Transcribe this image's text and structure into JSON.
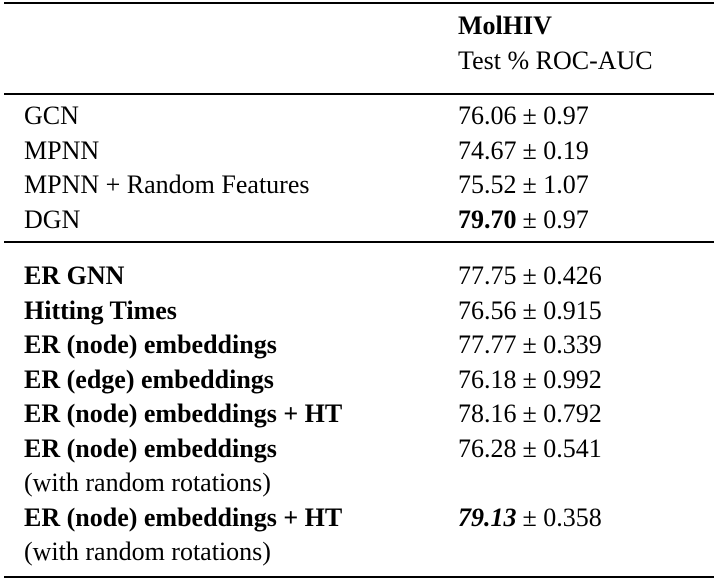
{
  "header": {
    "dataset": "MolHIV",
    "metric": "Test % ROC-AUC"
  },
  "table": {
    "groups": [
      {
        "bold": false,
        "rows": [
          {
            "method": "GCN",
            "mean": "76.06",
            "error": "± 0.97"
          },
          {
            "method": "MPNN",
            "mean": "74.67",
            "error": "± 0.19"
          },
          {
            "method": "MPNN + Random Features",
            "mean": "75.52",
            "error": "± 1.07"
          },
          {
            "method": "DGN",
            "mean": "79.70",
            "error": "± 0.97",
            "mean_style": "bold"
          }
        ]
      },
      {
        "bold": true,
        "rows": [
          {
            "method": "ER GNN",
            "mean": "77.75",
            "error": "± 0.426"
          },
          {
            "method": "Hitting Times",
            "mean": "76.56",
            "error": "± 0.915"
          },
          {
            "method": "ER (node) embeddings",
            "mean": "77.77",
            "error": "± 0.339"
          },
          {
            "method": "ER (edge) embeddings",
            "mean": "76.18",
            "error": "± 0.992"
          },
          {
            "method": "ER (node) embeddings + HT",
            "mean": "78.16",
            "error": "± 0.792"
          },
          {
            "method": "ER (node) embeddings",
            "note": "(with random rotations)",
            "mean": "76.28",
            "error": "± 0.541"
          },
          {
            "method": "ER (node) embeddings + HT",
            "note": "(with random rotations)",
            "mean": "79.13",
            "error": "± 0.358",
            "mean_style": "bold-italic"
          }
        ]
      }
    ]
  }
}
